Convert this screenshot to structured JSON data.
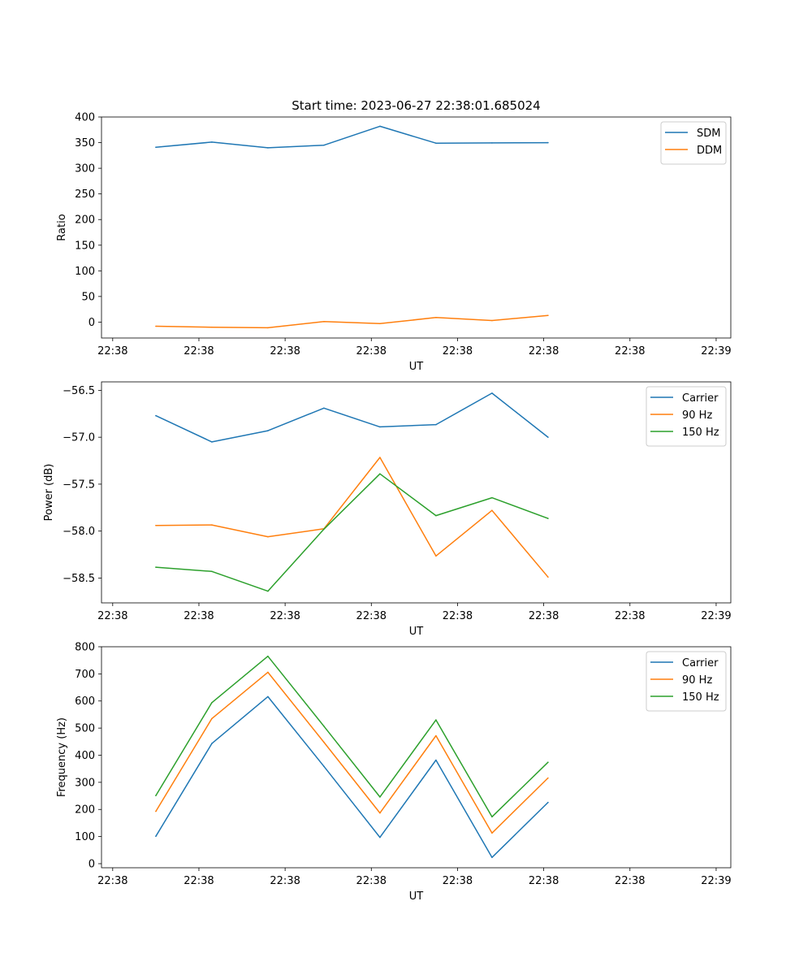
{
  "title": "Start time: 2023-06-27 22:38:01.685024",
  "chart_data": [
    {
      "type": "line",
      "xlabel": "UT",
      "ylabel": "Ratio",
      "x_tick_labels": [
        "22:38",
        "22:38",
        "22:38",
        "22:38",
        "22:38",
        "22:38",
        "22:38",
        "22:39"
      ],
      "x_tick_values": [
        0,
        10,
        20,
        30,
        40,
        50,
        60,
        70
      ],
      "xlim": [
        -1.3,
        71.7
      ],
      "ylim": [
        -31,
        400
      ],
      "y_ticks": [
        0,
        50,
        100,
        150,
        200,
        250,
        300,
        350,
        400
      ],
      "y_tick_labels": [
        "0",
        "50",
        "100",
        "150",
        "200",
        "250",
        "300",
        "350",
        "400"
      ],
      "legend": "top-right",
      "x": [
        5,
        11.5,
        18,
        24.5,
        31,
        37.5,
        44,
        50.5
      ],
      "series": [
        {
          "name": "SDM",
          "color": "#1f77b4",
          "values": [
            341,
            351,
            340,
            345,
            382,
            349,
            349.5,
            350
          ]
        },
        {
          "name": "DDM",
          "color": "#ff7f0e",
          "values": [
            -8,
            -10,
            -11,
            1,
            -3,
            9,
            3,
            13
          ]
        }
      ]
    },
    {
      "type": "line",
      "xlabel": "UT",
      "ylabel": "Power (dB)",
      "x_tick_labels": [
        "22:38",
        "22:38",
        "22:38",
        "22:38",
        "22:38",
        "22:38",
        "22:38",
        "22:39"
      ],
      "x_tick_values": [
        0,
        10,
        20,
        30,
        40,
        50,
        60,
        70
      ],
      "xlim": [
        -1.3,
        71.7
      ],
      "ylim": [
        -58.765,
        -56.41
      ],
      "y_ticks": [
        -58.5,
        -58.0,
        -57.5,
        -57.0,
        -56.5
      ],
      "y_tick_labels": [
        "−58.5",
        "−58.0",
        "−57.5",
        "−57.0",
        "−56.5"
      ],
      "legend": "top-right",
      "x": [
        5,
        11.5,
        18,
        24.5,
        31,
        37.5,
        44,
        50.5
      ],
      "series": [
        {
          "name": "Carrier",
          "color": "#1f77b4",
          "values": [
            -56.77,
            -57.05,
            -56.93,
            -56.69,
            -56.89,
            -56.865,
            -56.53,
            -57.0
          ]
        },
        {
          "name": "90 Hz",
          "color": "#ff7f0e",
          "values": [
            -57.94,
            -57.935,
            -58.06,
            -57.975,
            -57.215,
            -58.265,
            -57.78,
            -58.49
          ]
        },
        {
          "name": "150 Hz",
          "color": "#2ca02c",
          "values": [
            -58.385,
            -58.43,
            -58.64,
            -57.98,
            -57.39,
            -57.835,
            -57.645,
            -57.865
          ]
        }
      ]
    },
    {
      "type": "line",
      "xlabel": "UT",
      "ylabel": "Frequency (Hz)",
      "x_tick_labels": [
        "22:38",
        "22:38",
        "22:38",
        "22:38",
        "22:38",
        "22:38",
        "22:38",
        "22:39"
      ],
      "x_tick_values": [
        0,
        10,
        20,
        30,
        40,
        50,
        60,
        70
      ],
      "xlim": [
        -1.3,
        71.7
      ],
      "ylim": [
        -15,
        800
      ],
      "y_ticks": [
        0,
        100,
        200,
        300,
        400,
        500,
        600,
        700,
        800
      ],
      "y_tick_labels": [
        "0",
        "100",
        "200",
        "300",
        "400",
        "500",
        "600",
        "700",
        "800"
      ],
      "legend": "top-right",
      "x": [
        5,
        11.5,
        18,
        24.5,
        31,
        37.5,
        44,
        50.5
      ],
      "series": [
        {
          "name": "Carrier",
          "color": "#1f77b4",
          "values": [
            101,
            443,
            616,
            359,
            97,
            382,
            23,
            226
          ]
        },
        {
          "name": "90 Hz",
          "color": "#ff7f0e",
          "values": [
            193,
            535,
            706,
            448,
            187,
            472,
            113,
            316
          ]
        },
        {
          "name": "150 Hz",
          "color": "#2ca02c",
          "values": [
            251,
            594,
            765,
            507,
            246,
            530,
            173,
            374
          ]
        }
      ]
    }
  ]
}
